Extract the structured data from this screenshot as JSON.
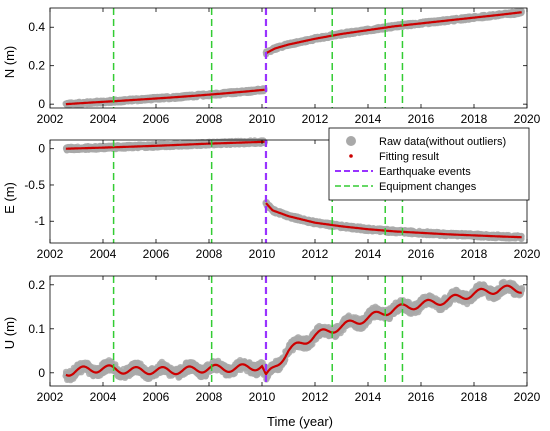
{
  "chart_data": [
    {
      "type": "line",
      "ylabel": "N (m)",
      "xlim": [
        2002,
        2020
      ],
      "ylim": [
        -0.02,
        0.5
      ],
      "yticks": [
        0,
        0.2,
        0.4
      ],
      "ytick_labels": [
        "0",
        "0.2",
        "0.4"
      ],
      "xticks": [
        2002,
        2004,
        2006,
        2008,
        2010,
        2012,
        2014,
        2016,
        2018,
        2020
      ],
      "xtick_labels": [
        "2002",
        "2004",
        "2006",
        "2008",
        "2010",
        "2012",
        "2014",
        "2016",
        "2018",
        "2020"
      ],
      "series": [
        {
          "segment": "pre-earthquake",
          "x": [
            2002.6,
            2003.5,
            2004.5,
            2005.5,
            2006.5,
            2007.5,
            2008.5,
            2009.5,
            2010.1
          ],
          "y": [
            0.0,
            0.008,
            0.016,
            0.025,
            0.034,
            0.044,
            0.055,
            0.067,
            0.075
          ]
        },
        {
          "segment": "post-earthquake",
          "x": [
            2010.15,
            2010.5,
            2011,
            2012,
            2013,
            2014,
            2015,
            2016,
            2017,
            2018,
            2019,
            2019.8
          ],
          "y": [
            0.265,
            0.29,
            0.31,
            0.34,
            0.365,
            0.385,
            0.405,
            0.42,
            0.435,
            0.45,
            0.465,
            0.478
          ]
        }
      ],
      "earthquake_events": [
        2010.15
      ],
      "equipment_changes": [
        2004.4,
        2008.1,
        2012.65,
        2014.65,
        2015.3
      ]
    },
    {
      "type": "line",
      "ylabel": "E (m)",
      "xlim": [
        2002,
        2020
      ],
      "ylim": [
        -1.3,
        0.12
      ],
      "yticks": [
        -1,
        -0.5,
        0
      ],
      "ytick_labels": [
        "-1",
        "-0.5",
        "0"
      ],
      "xticks": [
        2002,
        2004,
        2006,
        2008,
        2010,
        2012,
        2014,
        2016,
        2018,
        2020
      ],
      "xtick_labels": [
        "2002",
        "2004",
        "2006",
        "2008",
        "2010",
        "2012",
        "2014",
        "2016",
        "2018",
        "2020"
      ],
      "series": [
        {
          "segment": "pre-earthquake",
          "x": [
            2002.6,
            2004,
            2006,
            2008,
            2010.1
          ],
          "y": [
            0.0,
            0.015,
            0.04,
            0.07,
            0.095
          ]
        },
        {
          "segment": "post-earthquake",
          "x": [
            2010.15,
            2010.4,
            2011,
            2012,
            2013,
            2014,
            2015,
            2016,
            2017,
            2018,
            2019,
            2019.8
          ],
          "y": [
            -0.75,
            -0.85,
            -0.93,
            -1.02,
            -1.07,
            -1.11,
            -1.14,
            -1.16,
            -1.18,
            -1.195,
            -1.21,
            -1.22
          ]
        }
      ],
      "earthquake_events": [
        2010.15
      ],
      "equipment_changes": [
        2004.4,
        2008.1,
        2012.65,
        2014.65,
        2015.3
      ]
    },
    {
      "type": "line",
      "ylabel": "U (m)",
      "xlabel": "Time (year)",
      "xlim": [
        2002,
        2020
      ],
      "ylim": [
        -0.03,
        0.22
      ],
      "yticks": [
        0,
        0.1,
        0.2
      ],
      "ytick_labels": [
        "0",
        "0.1",
        "0.2"
      ],
      "xticks": [
        2002,
        2004,
        2006,
        2008,
        2010,
        2012,
        2014,
        2016,
        2018,
        2020
      ],
      "xtick_labels": [
        "2002",
        "2004",
        "2006",
        "2008",
        "2010",
        "2012",
        "2014",
        "2016",
        "2018",
        "2020"
      ],
      "series": [
        {
          "segment": "fit",
          "x": [
            2002.6,
            2003,
            2004,
            2005,
            2006,
            2007,
            2008,
            2009,
            2010,
            2010.15,
            2011,
            2012,
            2013,
            2014,
            2015,
            2016,
            2017,
            2018,
            2019,
            2019.8
          ],
          "y": [
            0.0,
            0.005,
            0.01,
            0.005,
            0.005,
            0.005,
            0.01,
            0.01,
            0.015,
            -0.01,
            0.05,
            0.085,
            0.105,
            0.125,
            0.145,
            0.155,
            0.165,
            0.18,
            0.19,
            0.19
          ]
        }
      ],
      "earthquake_events": [
        2010.15
      ],
      "equipment_changes": [
        2004.4,
        2008.1,
        2012.65,
        2014.65,
        2015.3
      ]
    }
  ],
  "legend": {
    "placement": "right, middle panel",
    "items": [
      {
        "label": "Raw data(without outliers)",
        "color": "#a9a9a9",
        "marker": "circle"
      },
      {
        "label": "Fitting result",
        "color": "#cc0000",
        "marker": "dot"
      },
      {
        "label": "Earthquake events",
        "color": "#9933ff",
        "marker": "dashed-line"
      },
      {
        "label": "Equipment changes",
        "color": "#33cc33",
        "marker": "dashed-line"
      }
    ]
  },
  "colors": {
    "raw": "#a9a9a9",
    "fit": "#cc0000",
    "earthquake": "#9933ff",
    "equipment": "#33cc33"
  }
}
